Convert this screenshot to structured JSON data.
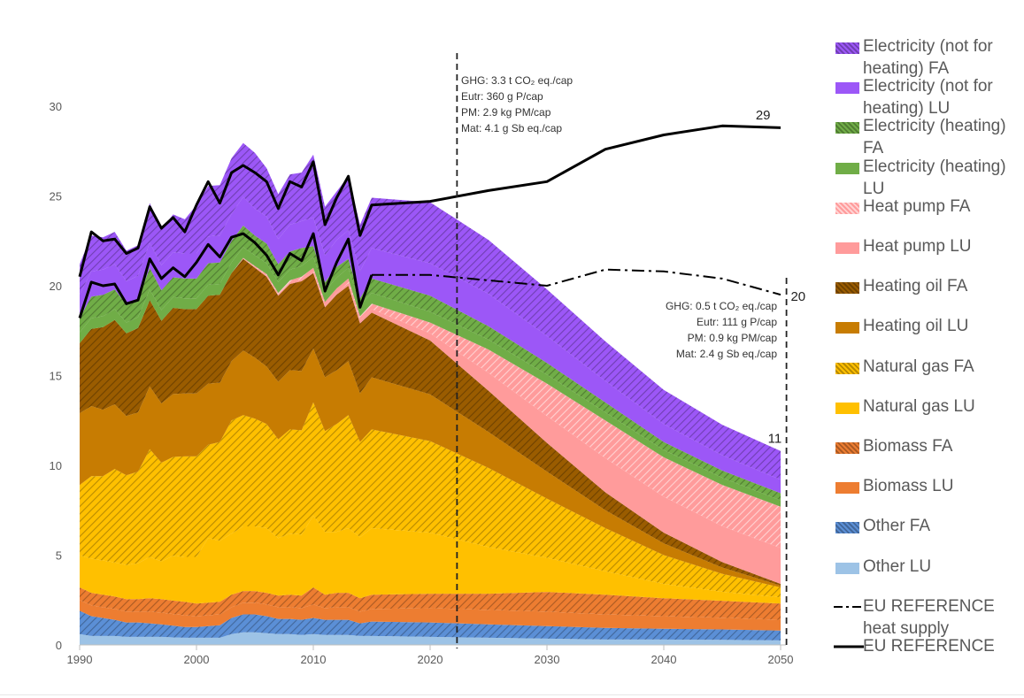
{
  "chart_data": {
    "type": "area",
    "stacked": true,
    "title": "",
    "xlabel": "",
    "ylabel": "",
    "xlim": [
      1990,
      2050
    ],
    "ylim": [
      0,
      30
    ],
    "x_ticks": [
      "1990",
      "2000",
      "2010",
      "2020",
      "2030",
      "2040",
      "2050"
    ],
    "y_ticks": [
      "0",
      "5",
      "10",
      "15",
      "20",
      "25",
      "30"
    ],
    "x": [
      1990,
      1991,
      1992,
      1993,
      1994,
      1995,
      1996,
      1997,
      1998,
      1999,
      2000,
      2001,
      2002,
      2003,
      2004,
      2005,
      2006,
      2007,
      2008,
      2009,
      2010,
      2011,
      2012,
      2013,
      2014,
      2015,
      2020,
      2025,
      2030,
      2035,
      2040,
      2045,
      2050
    ],
    "series": [
      {
        "name": "Other LU",
        "color": "#9dc3e6",
        "pattern": false,
        "values": [
          0.6,
          0.5,
          0.5,
          0.5,
          0.45,
          0.45,
          0.45,
          0.45,
          0.42,
          0.4,
          0.4,
          0.4,
          0.4,
          0.6,
          0.7,
          0.7,
          0.65,
          0.6,
          0.6,
          0.55,
          0.6,
          0.55,
          0.55,
          0.55,
          0.5,
          0.5,
          0.45,
          0.4,
          0.35,
          0.3,
          0.3,
          0.28,
          0.25
        ]
      },
      {
        "name": "Other FA",
        "color": "#5b8fd6",
        "pattern": true,
        "values": [
          1.3,
          1.1,
          1.0,
          0.9,
          0.8,
          0.8,
          0.75,
          0.7,
          0.65,
          0.6,
          0.6,
          0.65,
          0.7,
          0.9,
          1.0,
          1.0,
          0.95,
          0.85,
          0.85,
          0.85,
          0.9,
          0.85,
          0.85,
          0.85,
          0.7,
          0.8,
          0.8,
          0.75,
          0.7,
          0.65,
          0.6,
          0.58,
          0.55
        ]
      },
      {
        "name": "Biomass LU",
        "color": "#ed7d31",
        "pattern": false,
        "values": [
          0.6,
          0.6,
          0.6,
          0.6,
          0.6,
          0.6,
          0.65,
          0.65,
          0.65,
          0.65,
          0.6,
          0.6,
          0.6,
          0.6,
          0.65,
          0.65,
          0.65,
          0.65,
          0.65,
          0.65,
          0.75,
          0.65,
          0.7,
          0.7,
          0.65,
          0.7,
          0.8,
          0.8,
          0.8,
          0.75,
          0.7,
          0.65,
          0.6
        ]
      },
      {
        "name": "Biomass FA",
        "color": "#ed7d31",
        "pattern": true,
        "values": [
          0.7,
          0.7,
          0.7,
          0.7,
          0.7,
          0.7,
          0.75,
          0.75,
          0.75,
          0.75,
          0.7,
          0.7,
          0.7,
          0.7,
          0.65,
          0.65,
          0.65,
          0.65,
          0.7,
          0.7,
          0.95,
          0.75,
          0.8,
          0.8,
          0.75,
          0.8,
          0.8,
          0.9,
          1.1,
          1.1,
          1.0,
          0.95,
          0.9
        ]
      },
      {
        "name": "Natural gas LU",
        "color": "#ffc000",
        "pattern": false,
        "values": [
          1.8,
          1.9,
          1.9,
          1.9,
          1.9,
          2.0,
          2.3,
          2.1,
          2.5,
          2.5,
          2.6,
          3.6,
          3.4,
          3.4,
          3.6,
          3.6,
          3.6,
          3.2,
          3.4,
          3.4,
          4.0,
          3.5,
          3.4,
          3.6,
          3.4,
          3.7,
          3.4,
          2.6,
          1.9,
          1.3,
          0.8,
          0.5,
          0.35
        ]
      },
      {
        "name": "Natural gas FA",
        "color": "#ffc000",
        "pattern": true,
        "values": [
          3.9,
          4.6,
          4.7,
          5.2,
          5.0,
          5.1,
          6.0,
          5.5,
          5.5,
          5.6,
          5.6,
          5.2,
          5.5,
          6.3,
          6.2,
          6.0,
          5.8,
          5.5,
          5.8,
          5.8,
          6.3,
          5.6,
          6.0,
          6.3,
          5.3,
          5.5,
          5.1,
          4.4,
          3.3,
          2.4,
          1.6,
          1.0,
          0.55
        ]
      },
      {
        "name": "Heating oil LU",
        "color": "#c77c02",
        "pattern": false,
        "values": [
          4.0,
          3.9,
          3.7,
          3.6,
          3.3,
          3.3,
          3.5,
          3.3,
          3.5,
          3.5,
          3.5,
          3.4,
          3.3,
          3.3,
          3.6,
          3.4,
          3.2,
          3.2,
          3.3,
          3.3,
          3.0,
          3.0,
          3.0,
          3.0,
          2.7,
          2.9,
          2.6,
          2.0,
          1.5,
          1.0,
          0.65,
          0.35,
          0.1
        ]
      },
      {
        "name": "Heating oil FA",
        "color": "#9a5c00",
        "pattern": true,
        "values": [
          3.9,
          4.3,
          4.6,
          4.7,
          4.6,
          4.7,
          4.8,
          4.6,
          4.8,
          4.7,
          4.7,
          4.9,
          4.9,
          4.9,
          5.1,
          5.0,
          5.0,
          4.8,
          4.8,
          5.0,
          4.2,
          3.9,
          4.2,
          4.2,
          3.9,
          3.6,
          3.0,
          2.3,
          1.6,
          1.0,
          0.6,
          0.3,
          0.1
        ]
      },
      {
        "name": "Heat pump LU",
        "color": "#ff9b9b",
        "pattern": false,
        "values": [
          0.0,
          0.0,
          0.0,
          0.0,
          0.0,
          0.0,
          0.0,
          0.0,
          0.0,
          0.0,
          0.0,
          0.0,
          0.0,
          0.0,
          0.0,
          0.05,
          0.05,
          0.05,
          0.1,
          0.1,
          0.1,
          0.1,
          0.1,
          0.15,
          0.15,
          0.2,
          0.4,
          1.0,
          1.5,
          1.9,
          2.0,
          2.0,
          2.0
        ]
      },
      {
        "name": "Heat pump FA",
        "color": "#ff9b9b",
        "pattern": true,
        "values": [
          0.0,
          0.0,
          0.0,
          0.0,
          0.0,
          0.0,
          0.0,
          0.0,
          0.0,
          0.0,
          0.0,
          0.0,
          0.0,
          0.0,
          0.05,
          0.05,
          0.1,
          0.1,
          0.1,
          0.15,
          0.2,
          0.2,
          0.25,
          0.25,
          0.25,
          0.3,
          0.6,
          1.3,
          1.8,
          2.1,
          2.2,
          2.3,
          2.3
        ]
      },
      {
        "name": "Electricity (heating) LU",
        "color": "#70ad47",
        "pattern": false,
        "values": [
          0.6,
          0.6,
          0.6,
          0.6,
          0.6,
          0.6,
          0.6,
          0.6,
          0.6,
          0.6,
          0.6,
          0.6,
          0.6,
          0.6,
          0.6,
          0.6,
          0.6,
          0.6,
          0.6,
          0.6,
          0.6,
          0.6,
          0.6,
          0.6,
          0.6,
          0.6,
          0.6,
          0.55,
          0.5,
          0.45,
          0.4,
          0.4,
          0.35
        ]
      },
      {
        "name": "Electricity (heating) FA",
        "color": "#70ad47",
        "pattern": true,
        "values": [
          0.8,
          1.2,
          1.2,
          1.1,
          1.0,
          1.0,
          1.2,
          1.1,
          1.1,
          1.1,
          1.1,
          1.2,
          1.2,
          1.2,
          1.2,
          1.1,
          1.1,
          1.0,
          1.0,
          1.0,
          0.6,
          0.5,
          0.6,
          0.5,
          0.4,
          0.8,
          0.9,
          0.75,
          0.65,
          0.55,
          0.45,
          0.4,
          0.4
        ]
      },
      {
        "name": "Electricity (not for heating) LU",
        "color": "#9c57f7",
        "pattern": false,
        "values": [
          1.3,
          1.4,
          1.4,
          1.4,
          1.3,
          1.3,
          1.4,
          1.4,
          1.4,
          1.4,
          1.4,
          1.5,
          1.5,
          1.5,
          1.6,
          1.5,
          1.5,
          1.4,
          1.5,
          1.5,
          1.6,
          1.5,
          1.5,
          1.6,
          1.5,
          1.7,
          1.8,
          1.8,
          1.5,
          1.2,
          1.0,
          0.85,
          0.75
        ]
      },
      {
        "name": "Electricity (not for heating) FA",
        "color": "#9c57f7",
        "pattern": true,
        "values": [
          1.7,
          2.0,
          1.8,
          1.8,
          1.7,
          1.7,
          2.2,
          2.0,
          2.1,
          1.9,
          2.7,
          2.8,
          2.8,
          3.1,
          3.0,
          3.1,
          2.7,
          2.5,
          2.8,
          2.7,
          3.5,
          2.7,
          2.7,
          3.0,
          2.6,
          2.8,
          3.4,
          3.0,
          2.6,
          2.2,
          1.9,
          1.7,
          1.6
        ]
      }
    ],
    "lines": [
      {
        "name": "EU REFERENCE heat supply",
        "style": "dash-dot",
        "color": "#000000",
        "x": [
          2015,
          2020,
          2025,
          2030,
          2035,
          2040,
          2045,
          2050
        ],
        "values": [
          20.6,
          20.6,
          20.3,
          20.0,
          20.9,
          20.8,
          20.4,
          19.5
        ]
      },
      {
        "name": "EU REFERENCE",
        "style": "solid",
        "color": "#000000",
        "x": [
          1990,
          1991,
          1992,
          1993,
          1994,
          1995,
          1996,
          1997,
          1998,
          1999,
          2000,
          2001,
          2002,
          2003,
          2004,
          2005,
          2006,
          2007,
          2008,
          2009,
          2010,
          2011,
          2012,
          2013,
          2014,
          2015,
          2020,
          2025,
          2030,
          2035,
          2040,
          2045,
          2050
        ],
        "values": [
          20.5,
          23.0,
          22.5,
          22.6,
          21.8,
          22.1,
          24.4,
          23.2,
          23.8,
          23.0,
          24.5,
          25.8,
          24.6,
          26.3,
          26.7,
          26.3,
          25.8,
          24.3,
          25.8,
          25.5,
          26.9,
          23.4,
          24.9,
          26.1,
          22.8,
          24.5,
          24.7,
          25.3,
          25.8,
          27.6,
          28.4,
          28.9,
          28.8
        ]
      },
      {
        "name": "",
        "style": "solid",
        "color": "#000000",
        "x": [
          1990,
          1991,
          1992,
          1993,
          1994,
          1995,
          1996,
          1997,
          1998,
          1999,
          2000,
          2001,
          2002,
          2003,
          2004,
          2005,
          2006,
          2007,
          2008,
          2009,
          2010,
          2011,
          2012,
          2013,
          2014,
          2015
        ],
        "values": [
          18.2,
          20.2,
          20.0,
          20.1,
          19.0,
          19.2,
          21.5,
          20.4,
          21.0,
          20.5,
          21.3,
          22.3,
          21.6,
          22.7,
          22.9,
          22.4,
          21.7,
          20.6,
          21.8,
          21.4,
          22.9,
          19.7,
          21.3,
          22.6,
          18.8,
          20.6
        ]
      }
    ],
    "vlines": [
      2022.3,
      2050.5
    ],
    "annotations": [
      {
        "id": "ann_2022",
        "lines": [
          "GHG: 3.3 t CO₂ eq./cap",
          "Eutr: 360 g P/cap",
          "PM: 2.9 kg PM/cap",
          "Mat: 4.1 g Sb eq./cap"
        ]
      },
      {
        "id": "ann_2050",
        "lines": [
          "GHG: 0.5 t CO₂ eq./cap",
          "Eutr: 111 g P/cap",
          "PM: 0.9 kg PM/cap",
          "Mat: 2.4 g Sb eq./cap"
        ]
      }
    ],
    "end_labels": [
      {
        "text": "29",
        "x": 2048.5,
        "y": 29.5
      },
      {
        "text": "20",
        "x": 2051.5,
        "y": 19.4
      },
      {
        "text": "11",
        "x": 2049.5,
        "y": 11.5
      }
    ],
    "grid": false,
    "legend_position": "right"
  },
  "legend": [
    {
      "label": "Electricity (not for heating) FA",
      "color": "#9c57f7",
      "kind": "hatch"
    },
    {
      "label": "Electricity (not for heating) LU",
      "color": "#9c57f7",
      "kind": "solid"
    },
    {
      "label": "Electricity (heating) FA",
      "color": "#70ad47",
      "kind": "hatch"
    },
    {
      "label": "Electricity (heating) LU",
      "color": "#70ad47",
      "kind": "solid"
    },
    {
      "label": "Heat pump FA",
      "color": "#ff9b9b",
      "kind": "hatch"
    },
    {
      "label": "Heat pump LU",
      "color": "#ff9b9b",
      "kind": "solid"
    },
    {
      "label": "Heating oil FA",
      "color": "#9a5c00",
      "kind": "hatch"
    },
    {
      "label": "Heating oil LU",
      "color": "#c77c02",
      "kind": "solid"
    },
    {
      "label": "Natural gas FA",
      "color": "#ffc000",
      "kind": "hatch"
    },
    {
      "label": "Natural gas LU",
      "color": "#ffc000",
      "kind": "solid"
    },
    {
      "label": "Biomass FA",
      "color": "#ed7d31",
      "kind": "hatch"
    },
    {
      "label": "Biomass LU",
      "color": "#ed7d31",
      "kind": "solid"
    },
    {
      "label": "Other FA",
      "color": "#5b8fd6",
      "kind": "hatch"
    },
    {
      "label": "Other LU",
      "color": "#9dc3e6",
      "kind": "solid"
    },
    {
      "label": "EU REFERENCE heat supply",
      "color": "#000000",
      "kind": "dashdot"
    },
    {
      "label": "EU REFERENCE",
      "color": "#000000",
      "kind": "line"
    }
  ]
}
